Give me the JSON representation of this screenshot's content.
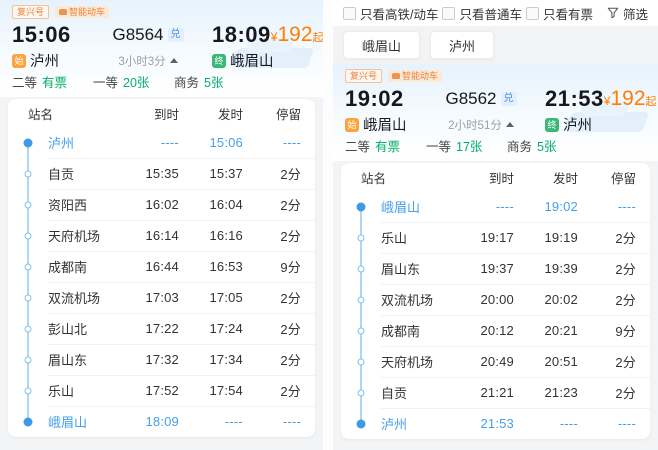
{
  "colors": {
    "accent_blue": "#3d9ae8",
    "ticket_green": "#00ae66",
    "price_orange": "#ff7e00",
    "badge_orange": "#e8823c",
    "origin_tag_bg": "#ffa23c",
    "terminus_tag_bg": "#3bb878"
  },
  "left_panel": {
    "badges": {
      "fuxing": "复兴号",
      "smart": "智能动车"
    },
    "header": {
      "depart_time": "15:06",
      "train_no": "G8564",
      "exchange_badge": "兑",
      "arrive_time": "18:09",
      "price_symbol": "¥",
      "price_value": "192",
      "price_suffix": "起",
      "origin_tag": "始",
      "origin_station": "泸州",
      "duration": "3小时3分",
      "terminus_tag": "终",
      "terminus_station": "峨眉山"
    },
    "seats": [
      {
        "label": "二等",
        "value": "有票"
      },
      {
        "label": "一等",
        "value": "20张"
      },
      {
        "label": "商务",
        "value": "5张"
      }
    ],
    "table": {
      "columns": [
        "站名",
        "到时",
        "发时",
        "停留"
      ],
      "rows": [
        {
          "station": "泸州",
          "arrive": "----",
          "depart": "15:06",
          "stop": "----",
          "state": "origin"
        },
        {
          "station": "自贡",
          "arrive": "15:35",
          "depart": "15:37",
          "stop": "2分"
        },
        {
          "station": "资阳西",
          "arrive": "16:02",
          "depart": "16:04",
          "stop": "2分"
        },
        {
          "station": "天府机场",
          "arrive": "16:14",
          "depart": "16:16",
          "stop": "2分"
        },
        {
          "station": "成都南",
          "arrive": "16:44",
          "depart": "16:53",
          "stop": "9分"
        },
        {
          "station": "双流机场",
          "arrive": "17:03",
          "depart": "17:05",
          "stop": "2分"
        },
        {
          "station": "彭山北",
          "arrive": "17:22",
          "depart": "17:24",
          "stop": "2分"
        },
        {
          "station": "眉山东",
          "arrive": "17:32",
          "depart": "17:34",
          "stop": "2分"
        },
        {
          "station": "乐山",
          "arrive": "17:52",
          "depart": "17:54",
          "stop": "2分"
        },
        {
          "station": "峨眉山",
          "arrive": "18:09",
          "depart": "----",
          "stop": "----",
          "state": "terminus"
        }
      ]
    }
  },
  "right_panel": {
    "filters": {
      "options": [
        {
          "label": "只看高铁/动车"
        },
        {
          "label": "只看普通车"
        },
        {
          "label": "只看有票"
        }
      ],
      "filter_label": "筛选"
    },
    "tabs": [
      {
        "label": "峨眉山"
      },
      {
        "label": "泸州"
      }
    ],
    "badges": {
      "fuxing": "复兴号",
      "smart": "智能动车"
    },
    "header": {
      "depart_time": "19:02",
      "train_no": "G8562",
      "exchange_badge": "兑",
      "arrive_time": "21:53",
      "price_symbol": "¥",
      "price_value": "192",
      "price_suffix": "起",
      "origin_tag": "始",
      "origin_station": "峨眉山",
      "duration": "2小时51分",
      "terminus_tag": "终",
      "terminus_station": "泸州"
    },
    "seats": [
      {
        "label": "二等",
        "value": "有票"
      },
      {
        "label": "一等",
        "value": "17张"
      },
      {
        "label": "商务",
        "value": "5张"
      }
    ],
    "table": {
      "columns": [
        "站名",
        "到时",
        "发时",
        "停留"
      ],
      "rows": [
        {
          "station": "峨眉山",
          "arrive": "----",
          "depart": "19:02",
          "stop": "----",
          "state": "origin"
        },
        {
          "station": "乐山",
          "arrive": "19:17",
          "depart": "19:19",
          "stop": "2分"
        },
        {
          "station": "眉山东",
          "arrive": "19:37",
          "depart": "19:39",
          "stop": "2分"
        },
        {
          "station": "双流机场",
          "arrive": "20:00",
          "depart": "20:02",
          "stop": "2分"
        },
        {
          "station": "成都南",
          "arrive": "20:12",
          "depart": "20:21",
          "stop": "9分"
        },
        {
          "station": "天府机场",
          "arrive": "20:49",
          "depart": "20:51",
          "stop": "2分"
        },
        {
          "station": "自贡",
          "arrive": "21:21",
          "depart": "21:23",
          "stop": "2分"
        },
        {
          "station": "泸州",
          "arrive": "21:53",
          "depart": "----",
          "stop": "----",
          "state": "terminus"
        }
      ]
    }
  }
}
